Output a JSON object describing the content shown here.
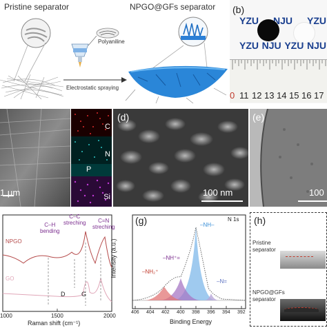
{
  "panel_a": {
    "pristine_label": "Pristine separator",
    "npgo_label": "NPGO@GFs separator",
    "polyaniline_label": "Polyaniline",
    "spraying_label": "Electrostatic spraying"
  },
  "panel_b": {
    "letter": "(b)",
    "labels_top": [
      "YZU",
      "NJU",
      "YZU"
    ],
    "labels_bottom": [
      "YZU",
      "NJU",
      "YZU",
      "NJU"
    ],
    "ruler_numbers": [
      "0",
      "11",
      "12",
      "13",
      "14",
      "15",
      "16",
      "17"
    ]
  },
  "panel_c": {
    "scale_bar": "1 μm",
    "elements": [
      "C",
      "N",
      "P",
      "Si"
    ]
  },
  "panel_d": {
    "letter": "(d)",
    "scale_bar": "100 nm"
  },
  "panel_e": {
    "letter": "(e)",
    "scale_bar": "100"
  },
  "panel_f": {
    "xlabel": "Raman shift (cm⁻¹)",
    "xticks": [
      "1000",
      "1500",
      "2000"
    ],
    "sample_npgo": "NPGO",
    "sample_go": "GO",
    "ann_ch": "C–H\nbending",
    "ann_cc": "C–C\nstreching",
    "ann_cn": "C=N\nstreching",
    "band_d": "D",
    "band_g": "G"
  },
  "panel_g": {
    "letter": "(g)",
    "ylabel": "Intensity (a.u.)",
    "xlabel": "Binding Energy",
    "corner": "N 1s",
    "xticks": [
      "406",
      "404",
      "402",
      "400",
      "398",
      "396",
      "394",
      "392"
    ],
    "peak_nh": "–NH–",
    "peak_nh_plus": "–NH⁺=",
    "peak_nh2": "–NH₂⁺",
    "peak_n": "–N="
  },
  "panel_h": {
    "letter": "(h)",
    "pristine": "Pristine\nseparator",
    "npgo": "NPGO@GFs\nseparator"
  },
  "colors": {
    "blue": "#3a8fd8",
    "purple": "#7b2d8e",
    "red_ann": "#c0392b",
    "raman_red": "#b54a4a",
    "raman_pink": "#e0a6b8"
  }
}
